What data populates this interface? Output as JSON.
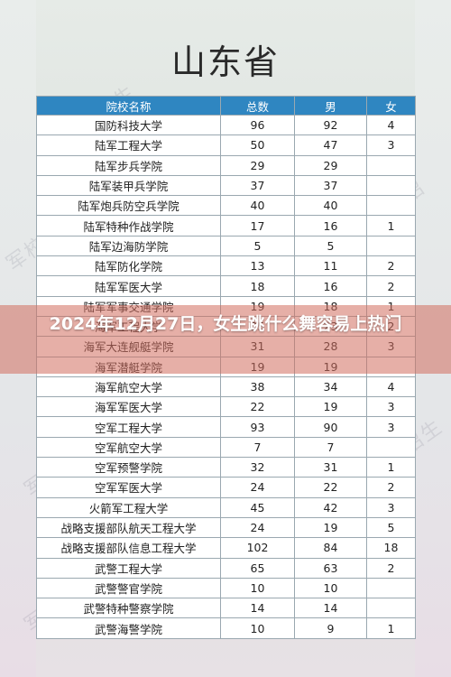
{
  "title": "山东省",
  "headline": "2024年12月27日，女生跳什么舞容易上热门",
  "watermark": "军校招生",
  "table": {
    "headers": [
      "院校名称",
      "总数",
      "男",
      "女"
    ],
    "rows": [
      [
        "国防科技大学",
        "96",
        "92",
        "4"
      ],
      [
        "陆军工程大学",
        "50",
        "47",
        "3"
      ],
      [
        "陆军步兵学院",
        "29",
        "29",
        ""
      ],
      [
        "陆军装甲兵学院",
        "37",
        "37",
        ""
      ],
      [
        "陆军炮兵防空兵学院",
        "40",
        "40",
        ""
      ],
      [
        "陆军特种作战学院",
        "17",
        "16",
        "1"
      ],
      [
        "陆军边海防学院",
        "5",
        "5",
        ""
      ],
      [
        "陆军防化学院",
        "13",
        "11",
        "2"
      ],
      [
        "陆军军医大学",
        "18",
        "16",
        "2"
      ],
      [
        "陆军军事交通学院",
        "19",
        "18",
        "1"
      ],
      [
        "海军工程大学",
        "25",
        "23",
        "2"
      ],
      [
        "海军大连舰艇学院",
        "31",
        "28",
        "3"
      ],
      [
        "海军潜艇学院",
        "19",
        "19",
        ""
      ],
      [
        "海军航空大学",
        "38",
        "34",
        "4"
      ],
      [
        "海军军医大学",
        "22",
        "19",
        "3"
      ],
      [
        "空军工程大学",
        "93",
        "90",
        "3"
      ],
      [
        "空军航空大学",
        "7",
        "7",
        ""
      ],
      [
        "空军预警学院",
        "32",
        "31",
        "1"
      ],
      [
        "空军军医大学",
        "24",
        "22",
        "2"
      ],
      [
        "火箭军工程大学",
        "45",
        "42",
        "3"
      ],
      [
        "战略支援部队航天工程大学",
        "24",
        "19",
        "5"
      ],
      [
        "战略支援部队信息工程大学",
        "102",
        "84",
        "18"
      ],
      [
        "武警工程大学",
        "65",
        "63",
        "2"
      ],
      [
        "武警警官学院",
        "10",
        "10",
        ""
      ],
      [
        "武警特种警察学院",
        "14",
        "14",
        ""
      ],
      [
        "武警海警学院",
        "10",
        "9",
        "1"
      ]
    ]
  }
}
